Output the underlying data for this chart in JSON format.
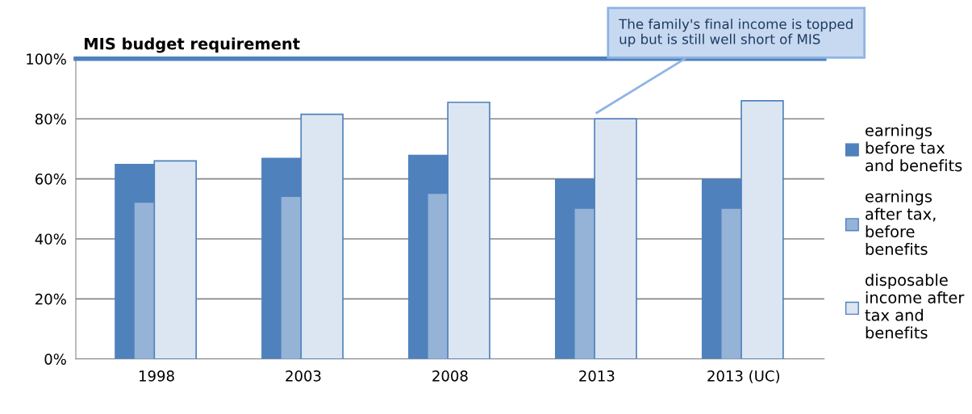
{
  "chart_data": {
    "type": "bar",
    "categories": [
      "1998",
      "2003",
      "2008",
      "2013",
      "2013 (UC)"
    ],
    "series": [
      {
        "name": "earnings\nbefore tax\nand benefits",
        "color": "#4f81bd",
        "values": [
          65,
          67,
          68,
          60,
          60
        ]
      },
      {
        "name": "earnings\nafter tax,\nbefore\nbenefits",
        "color": "#95b3d7",
        "values": [
          52,
          54,
          55,
          50,
          50
        ]
      },
      {
        "name": "disposable\nincome after\ntax and\nbenefits",
        "color": "#dce6f2",
        "values": [
          66,
          81.5,
          85.5,
          80,
          86
        ]
      }
    ],
    "ylim": [
      0,
      100
    ],
    "yticks": [
      {
        "value": 0,
        "label": "0%"
      },
      {
        "value": 20,
        "label": "20%"
      },
      {
        "value": 40,
        "label": "40%"
      },
      {
        "value": 60,
        "label": "60%"
      },
      {
        "value": 80,
        "label": "80%"
      },
      {
        "value": 100,
        "label": "100%"
      }
    ],
    "grid": "y",
    "legend": "right",
    "ref_lines": [
      {
        "axis": "y",
        "value": 100,
        "label": "MIS budget requirement",
        "color": "#4f81bd"
      }
    ],
    "annotations": [
      "The family's final income is topped\nup but is still well short of MIS"
    ]
  }
}
